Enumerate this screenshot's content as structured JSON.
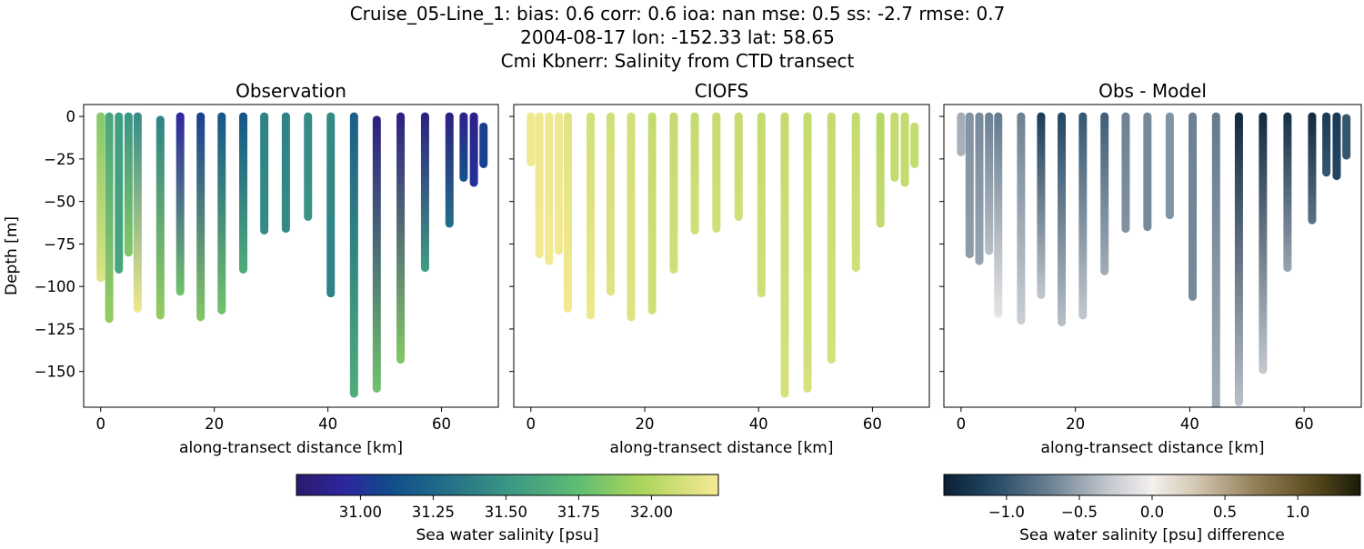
{
  "title_lines": [
    "Cruise_05-Line_1: bias: 0.6  corr: 0.6  ioa: nan  mse: 0.5  ss: -2.7  rmse: 0.7",
    "2004-08-17 lon: -152.33 lat: 58.65",
    "Cmi Kbnerr: Salinity from CTD transect"
  ],
  "chart_data": [
    {
      "type": "scatter",
      "title": "Observation",
      "xlabel": "along-transect distance [km]",
      "ylabel": "Depth [m]",
      "xlim": [
        -3,
        70
      ],
      "ylim": [
        -171,
        7
      ],
      "xticks": [
        0,
        20,
        40,
        60
      ],
      "yticks": [
        0,
        -25,
        -50,
        -75,
        -100,
        -125,
        -150
      ],
      "show_ytick_labels": true,
      "colormap": "haline",
      "casts": [
        {
          "x": 0,
          "depth": [
            0,
            -95
          ],
          "value": [
            31.85,
            32.15
          ]
        },
        {
          "x": 1.5,
          "depth": [
            0,
            -119
          ],
          "value": [
            31.6,
            31.9
          ]
        },
        {
          "x": 3.2,
          "depth": [
            0,
            -90
          ],
          "value": [
            31.55,
            31.6
          ]
        },
        {
          "x": 4.9,
          "depth": [
            0,
            -80
          ],
          "value": [
            31.5,
            31.85
          ]
        },
        {
          "x": 6.5,
          "depth": [
            0,
            -113
          ],
          "value": [
            31.45,
            32.2
          ]
        },
        {
          "x": 10.5,
          "depth": [
            -2,
            -117
          ],
          "value": [
            31.4,
            31.9
          ]
        },
        {
          "x": 14.0,
          "depth": [
            0,
            -103
          ],
          "value": [
            30.95,
            31.8
          ]
        },
        {
          "x": 17.6,
          "depth": [
            0,
            -118
          ],
          "value": [
            31.05,
            31.85
          ]
        },
        {
          "x": 21.3,
          "depth": [
            0,
            -114
          ],
          "value": [
            31.15,
            31.8
          ]
        },
        {
          "x": 25.1,
          "depth": [
            0,
            -90
          ],
          "value": [
            31.15,
            31.65
          ]
        },
        {
          "x": 28.8,
          "depth": [
            0,
            -67
          ],
          "value": [
            31.4,
            31.45
          ]
        },
        {
          "x": 32.6,
          "depth": [
            0,
            -66
          ],
          "value": [
            31.4,
            31.45
          ]
        },
        {
          "x": 36.5,
          "depth": [
            0,
            -59
          ],
          "value": [
            31.45,
            31.5
          ]
        },
        {
          "x": 40.5,
          "depth": [
            0,
            -104
          ],
          "value": [
            31.45,
            31.4
          ]
        },
        {
          "x": 44.6,
          "depth": [
            0,
            -163
          ],
          "value": [
            31.2,
            31.65
          ]
        },
        {
          "x": 48.6,
          "depth": [
            -2,
            -160
          ],
          "value": [
            30.85,
            31.8
          ]
        },
        {
          "x": 52.8,
          "depth": [
            0,
            -143
          ],
          "value": [
            30.85,
            31.85
          ]
        },
        {
          "x": 57.1,
          "depth": [
            0,
            -89
          ],
          "value": [
            30.85,
            31.55
          ]
        },
        {
          "x": 61.4,
          "depth": [
            0,
            -63
          ],
          "value": [
            30.85,
            31.3
          ]
        },
        {
          "x": 63.9,
          "depth": [
            0,
            -36
          ],
          "value": [
            30.88,
            31.15
          ]
        },
        {
          "x": 65.7,
          "depth": [
            0,
            -39
          ],
          "value": [
            30.88,
            31.0
          ]
        },
        {
          "x": 67.4,
          "depth": [
            -6,
            -28
          ],
          "value": [
            31.05,
            31.05
          ]
        }
      ]
    },
    {
      "type": "scatter",
      "title": "CIOFS",
      "xlabel": "along-transect distance [km]",
      "xlim": [
        -3,
        70
      ],
      "ylim": [
        -171,
        7
      ],
      "xticks": [
        0,
        20,
        40,
        60
      ],
      "yticks": [
        0,
        -25,
        -50,
        -75,
        -100,
        -125,
        -150
      ],
      "show_ytick_labels": false,
      "colormap": "haline",
      "casts": [
        {
          "x": 0,
          "depth": [
            0,
            -27
          ],
          "value": [
            32.2,
            32.2
          ]
        },
        {
          "x": 1.5,
          "depth": [
            0,
            -81
          ],
          "value": [
            32.2,
            32.22
          ]
        },
        {
          "x": 3.2,
          "depth": [
            0,
            -85
          ],
          "value": [
            32.2,
            32.22
          ]
        },
        {
          "x": 4.9,
          "depth": [
            0,
            -79
          ],
          "value": [
            32.2,
            32.22
          ]
        },
        {
          "x": 6.5,
          "depth": [
            0,
            -113
          ],
          "value": [
            32.15,
            32.22
          ]
        },
        {
          "x": 10.5,
          "depth": [
            0,
            -117
          ],
          "value": [
            32.1,
            32.2
          ]
        },
        {
          "x": 14.0,
          "depth": [
            0,
            -103
          ],
          "value": [
            32.1,
            32.15
          ]
        },
        {
          "x": 17.6,
          "depth": [
            0,
            -118
          ],
          "value": [
            32.1,
            32.15
          ]
        },
        {
          "x": 21.3,
          "depth": [
            0,
            -114
          ],
          "value": [
            32.05,
            32.1
          ]
        },
        {
          "x": 25.1,
          "depth": [
            0,
            -90
          ],
          "value": [
            32.05,
            32.1
          ]
        },
        {
          "x": 28.8,
          "depth": [
            0,
            -67
          ],
          "value": [
            32.05,
            32.1
          ]
        },
        {
          "x": 32.6,
          "depth": [
            0,
            -66
          ],
          "value": [
            32.05,
            32.1
          ]
        },
        {
          "x": 36.5,
          "depth": [
            0,
            -59
          ],
          "value": [
            32.05,
            32.1
          ]
        },
        {
          "x": 40.5,
          "depth": [
            0,
            -104
          ],
          "value": [
            32.05,
            32.1
          ]
        },
        {
          "x": 44.6,
          "depth": [
            0,
            -163
          ],
          "value": [
            32.05,
            32.12
          ]
        },
        {
          "x": 48.6,
          "depth": [
            0,
            -160
          ],
          "value": [
            32.05,
            32.12
          ]
        },
        {
          "x": 52.8,
          "depth": [
            0,
            -143
          ],
          "value": [
            32.05,
            32.12
          ]
        },
        {
          "x": 57.1,
          "depth": [
            0,
            -89
          ],
          "value": [
            32.05,
            32.1
          ]
        },
        {
          "x": 61.4,
          "depth": [
            0,
            -63
          ],
          "value": [
            32.0,
            32.05
          ]
        },
        {
          "x": 63.9,
          "depth": [
            0,
            -36
          ],
          "value": [
            32.05,
            32.05
          ]
        },
        {
          "x": 65.7,
          "depth": [
            0,
            -39
          ],
          "value": [
            32.05,
            32.05
          ]
        },
        {
          "x": 67.4,
          "depth": [
            -6,
            -28
          ],
          "value": [
            32.05,
            32.05
          ]
        }
      ]
    },
    {
      "type": "scatter",
      "title": "Obs - Model",
      "xlabel": "along-transect distance [km]",
      "xlim": [
        -3,
        70
      ],
      "ylim": [
        -171,
        7
      ],
      "xticks": [
        0,
        20,
        40,
        60
      ],
      "yticks": [
        0,
        -25,
        -50,
        -75,
        -100,
        -125,
        -150
      ],
      "show_ytick_labels": false,
      "colormap": "diff",
      "casts": [
        {
          "x": 0,
          "depth": [
            0,
            -21
          ],
          "value": [
            -0.45,
            -0.42
          ]
        },
        {
          "x": 1.5,
          "depth": [
            0,
            -81
          ],
          "value": [
            -0.6,
            -0.55
          ]
        },
        {
          "x": 3.2,
          "depth": [
            0,
            -85
          ],
          "value": [
            -0.65,
            -0.5
          ]
        },
        {
          "x": 4.9,
          "depth": [
            0,
            -79
          ],
          "value": [
            -0.7,
            -0.35
          ]
        },
        {
          "x": 6.5,
          "depth": [
            0,
            -116
          ],
          "value": [
            -0.75,
            -0.08
          ]
        },
        {
          "x": 10.5,
          "depth": [
            0,
            -120
          ],
          "value": [
            -0.7,
            -0.25
          ]
        },
        {
          "x": 14.0,
          "depth": [
            0,
            -105
          ],
          "value": [
            -1.2,
            -0.3
          ]
        },
        {
          "x": 17.6,
          "depth": [
            0,
            -121
          ],
          "value": [
            -1.1,
            -0.35
          ]
        },
        {
          "x": 21.3,
          "depth": [
            0,
            -117
          ],
          "value": [
            -1.0,
            -0.3
          ]
        },
        {
          "x": 25.1,
          "depth": [
            0,
            -91
          ],
          "value": [
            -0.95,
            -0.45
          ]
        },
        {
          "x": 28.8,
          "depth": [
            0,
            -66
          ],
          "value": [
            -0.7,
            -0.6
          ]
        },
        {
          "x": 32.6,
          "depth": [
            0,
            -65
          ],
          "value": [
            -0.65,
            -0.65
          ]
        },
        {
          "x": 36.5,
          "depth": [
            0,
            -58
          ],
          "value": [
            -0.6,
            -0.6
          ]
        },
        {
          "x": 40.5,
          "depth": [
            0,
            -106
          ],
          "value": [
            -0.7,
            -0.65
          ]
        },
        {
          "x": 44.6,
          "depth": [
            0,
            -171
          ],
          "value": [
            -0.75,
            -0.45
          ]
        },
        {
          "x": 48.6,
          "depth": [
            0,
            -168
          ],
          "value": [
            -1.35,
            -0.35
          ]
        },
        {
          "x": 52.8,
          "depth": [
            0,
            -149
          ],
          "value": [
            -1.35,
            -0.3
          ]
        },
        {
          "x": 57.1,
          "depth": [
            0,
            -89
          ],
          "value": [
            -1.3,
            -0.5
          ]
        },
        {
          "x": 61.4,
          "depth": [
            0,
            -61
          ],
          "value": [
            -1.35,
            -0.8
          ]
        },
        {
          "x": 63.9,
          "depth": [
            0,
            -33
          ],
          "value": [
            -1.2,
            -1.0
          ]
        },
        {
          "x": 65.7,
          "depth": [
            0,
            -35
          ],
          "value": [
            -1.2,
            -1.1
          ]
        },
        {
          "x": 67.4,
          "depth": [
            -1,
            -23
          ],
          "value": [
            -1.0,
            -1.0
          ]
        }
      ]
    }
  ],
  "colorbars": [
    {
      "label": "Sea water salinity [psu]",
      "range": [
        30.78,
        32.23
      ],
      "ticks": [
        "31.00",
        "31.25",
        "31.50",
        "31.75",
        "32.00"
      ],
      "colormap": "haline",
      "stops": [
        [
          30.78,
          "#2a1a6c"
        ],
        [
          30.95,
          "#2d26a0"
        ],
        [
          31.1,
          "#0f4d8a"
        ],
        [
          31.3,
          "#236f87"
        ],
        [
          31.5,
          "#3a9585"
        ],
        [
          31.75,
          "#5ebd72"
        ],
        [
          31.95,
          "#a8d35a"
        ],
        [
          32.23,
          "#f6ea94"
        ]
      ]
    },
    {
      "label": "Sea water salinity [psu] difference",
      "range": [
        -1.43,
        1.43
      ],
      "ticks": [
        "−1.0",
        "−0.5",
        "0.0",
        "0.5",
        "1.0"
      ],
      "colormap": "diff",
      "stops": [
        [
          -1.43,
          "#0a2036"
        ],
        [
          -1.1,
          "#234763"
        ],
        [
          -0.7,
          "#6c8193"
        ],
        [
          -0.3,
          "#c3c8ce"
        ],
        [
          0.0,
          "#f4f0ed"
        ],
        [
          0.3,
          "#d3c7b2"
        ],
        [
          0.7,
          "#94815a"
        ],
        [
          1.1,
          "#5a4b1e"
        ],
        [
          1.43,
          "#1a1c08"
        ]
      ]
    }
  ]
}
